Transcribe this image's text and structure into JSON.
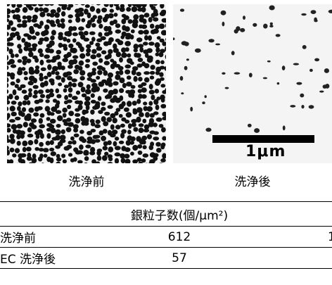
{
  "images": {
    "before": {
      "caption": "洗浄前"
    },
    "after": {
      "caption": "洗浄後",
      "scale_label": "1μm"
    }
  },
  "table": {
    "header": "銀粒子数(個/μm²)",
    "rows": [
      {
        "label": "洗浄前",
        "value": "612",
        "extra": "1"
      },
      {
        "label": "EC 洗浄後",
        "value": "57",
        "extra": ""
      }
    ]
  }
}
